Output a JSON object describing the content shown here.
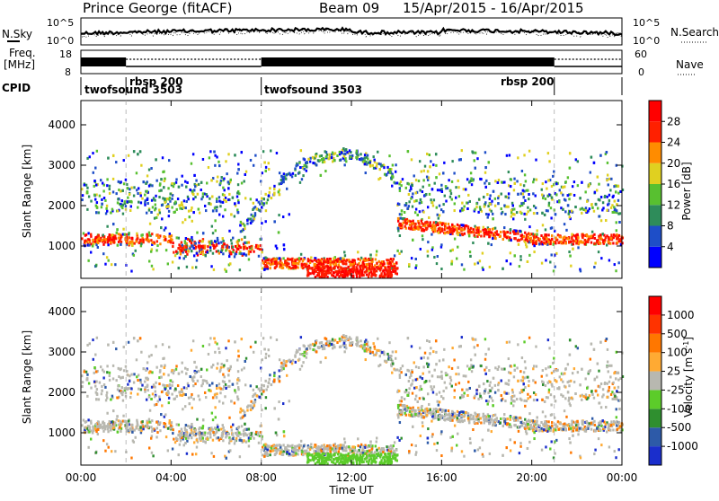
{
  "header": {
    "station": "Prince George (fitACF)",
    "beam": "Beam 09",
    "date_range": "15/Apr/2015 - 16/Apr/2015"
  },
  "top_panels": {
    "nsky_label": "N.Sky",
    "nsearch_label": "N.Search",
    "freq_label_1": "Freq.",
    "freq_label_2": "[MHz]",
    "nave_label": "Nave",
    "cpid_label": "CPID",
    "noise_ticks_left": [
      "10^5",
      "10^0"
    ],
    "noise_ticks_right": [
      "10^5",
      "10^0"
    ],
    "freq_ticks": [
      "18",
      "8"
    ],
    "nave_ticks": [
      "60",
      "0"
    ],
    "cpid_segments": [
      {
        "name": "twofsound 3503",
        "start_hour": 0,
        "end_hour": 2.0
      },
      {
        "name": "rbsp 200",
        "start_hour": 2.0,
        "end_hour": 8.0
      },
      {
        "name": "twofsound 3503",
        "start_hour": 8.0,
        "end_hour": 21.0
      },
      {
        "name": "rbsp 200",
        "start_hour": 21.0,
        "end_hour": 24.0
      }
    ]
  },
  "chart_data": [
    {
      "type": "heatmap",
      "title": "",
      "xlabel": "Time UT",
      "ylabel": "Slant Range [km]",
      "x_ticks": [
        "00:00",
        "04:00",
        "08:00",
        "12:00",
        "16:00",
        "20:00",
        "00:00"
      ],
      "xlim_hours": [
        0,
        24
      ],
      "ylim_km": [
        200,
        4600
      ],
      "y_ticks": [
        1000,
        2000,
        3000,
        4000
      ],
      "colorbar": {
        "label": "Power [dB]",
        "ticks": [
          "4",
          "8",
          "12",
          "16",
          "20",
          "24",
          "28"
        ],
        "colors": [
          "#0000ff",
          "#1e4ec8",
          "#2e8c5a",
          "#58c030",
          "#e0d020",
          "#ff8c00",
          "#ff2000",
          "#ff0000"
        ]
      }
    },
    {
      "type": "heatmap",
      "title": "",
      "xlabel": "Time UT",
      "ylabel": "Slant Range [km]",
      "x_ticks": [
        "00:00",
        "04:00",
        "08:00",
        "12:00",
        "16:00",
        "20:00",
        "00:00"
      ],
      "xlim_hours": [
        0,
        24
      ],
      "ylim_km": [
        200,
        4600
      ],
      "y_ticks": [
        1000,
        2000,
        3000,
        4000
      ],
      "colorbar": {
        "label": "Velocity [m s^-1]",
        "ticks": [
          "1000",
          "500",
          "100",
          "25",
          "-25",
          "-100",
          "-500",
          "-1000"
        ],
        "colors": [
          "#1a2ecc",
          "#2d5aa8",
          "#2f8f2f",
          "#5ccc2a",
          "#b8b8b0",
          "#ffaa33",
          "#ff7700",
          "#ff3300",
          "#ff0000"
        ]
      }
    }
  ]
}
